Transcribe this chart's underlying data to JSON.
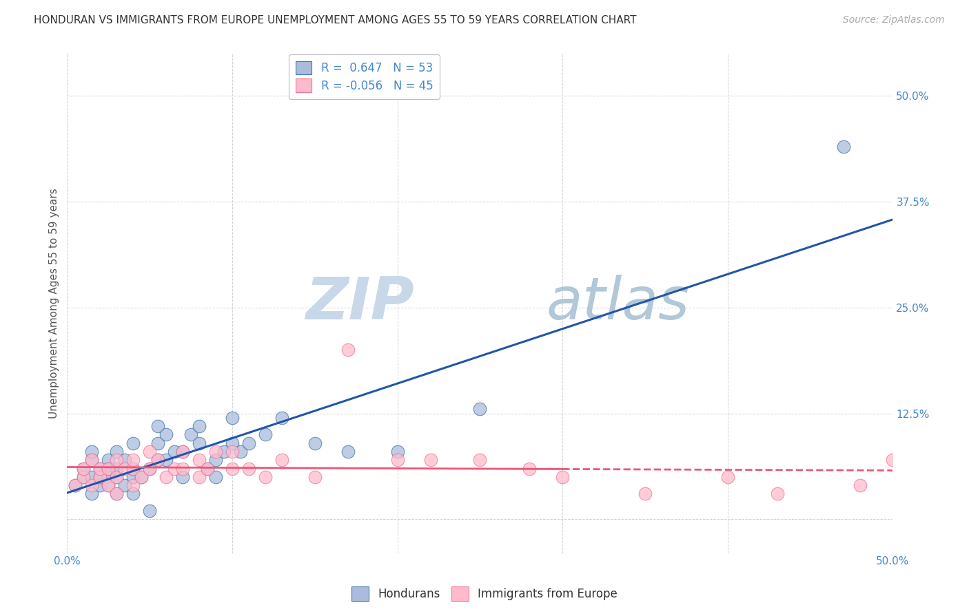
{
  "title": "HONDURAN VS IMMIGRANTS FROM EUROPE UNEMPLOYMENT AMONG AGES 55 TO 59 YEARS CORRELATION CHART",
  "source": "Source: ZipAtlas.com",
  "ylabel": "Unemployment Among Ages 55 to 59 years",
  "xlim": [
    0.0,
    0.5
  ],
  "ylim": [
    -0.04,
    0.55
  ],
  "x_ticks": [
    0.0,
    0.1,
    0.2,
    0.3,
    0.4,
    0.5
  ],
  "x_tick_labels": [
    "0.0%",
    "",
    "",
    "",
    "",
    "50.0%"
  ],
  "y_ticks": [
    0.0,
    0.125,
    0.25,
    0.375,
    0.5
  ],
  "y_tick_labels": [
    "",
    "12.5%",
    "25.0%",
    "37.5%",
    "50.0%"
  ],
  "background_color": "#ffffff",
  "grid_color": "#cccccc",
  "watermark_zip": "ZIP",
  "watermark_atlas": "atlas",
  "blue_color": "#aabbdd",
  "pink_color": "#ffbbcc",
  "blue_edge_color": "#4477aa",
  "pink_edge_color": "#ee7799",
  "blue_line_color": "#2255aa",
  "pink_line_color": "#ee5577",
  "R_blue": 0.647,
  "N_blue": 53,
  "R_pink": -0.056,
  "N_pink": 45,
  "blue_scatter_x": [
    0.005,
    0.01,
    0.01,
    0.015,
    0.015,
    0.015,
    0.015,
    0.02,
    0.02,
    0.02,
    0.025,
    0.025,
    0.025,
    0.025,
    0.03,
    0.03,
    0.03,
    0.03,
    0.035,
    0.035,
    0.04,
    0.04,
    0.04,
    0.04,
    0.045,
    0.05,
    0.05,
    0.055,
    0.055,
    0.055,
    0.06,
    0.06,
    0.065,
    0.07,
    0.07,
    0.075,
    0.08,
    0.08,
    0.085,
    0.09,
    0.09,
    0.095,
    0.1,
    0.1,
    0.105,
    0.11,
    0.12,
    0.13,
    0.15,
    0.17,
    0.2,
    0.25,
    0.47
  ],
  "blue_scatter_y": [
    0.04,
    0.05,
    0.06,
    0.03,
    0.05,
    0.07,
    0.08,
    0.04,
    0.06,
    0.05,
    0.05,
    0.07,
    0.04,
    0.06,
    0.03,
    0.05,
    0.06,
    0.08,
    0.04,
    0.07,
    0.03,
    0.05,
    0.06,
    0.09,
    0.05,
    0.01,
    0.06,
    0.07,
    0.09,
    0.11,
    0.07,
    0.1,
    0.08,
    0.05,
    0.08,
    0.1,
    0.09,
    0.11,
    0.06,
    0.05,
    0.07,
    0.08,
    0.09,
    0.12,
    0.08,
    0.09,
    0.1,
    0.12,
    0.09,
    0.08,
    0.08,
    0.13,
    0.44
  ],
  "pink_scatter_x": [
    0.005,
    0.01,
    0.01,
    0.015,
    0.015,
    0.02,
    0.02,
    0.025,
    0.025,
    0.03,
    0.03,
    0.03,
    0.035,
    0.04,
    0.04,
    0.04,
    0.045,
    0.05,
    0.05,
    0.055,
    0.06,
    0.065,
    0.07,
    0.07,
    0.08,
    0.08,
    0.085,
    0.09,
    0.1,
    0.1,
    0.11,
    0.12,
    0.13,
    0.15,
    0.17,
    0.2,
    0.22,
    0.25,
    0.28,
    0.3,
    0.35,
    0.4,
    0.43,
    0.48,
    0.5
  ],
  "pink_scatter_y": [
    0.04,
    0.05,
    0.06,
    0.04,
    0.07,
    0.05,
    0.06,
    0.04,
    0.06,
    0.03,
    0.05,
    0.07,
    0.06,
    0.04,
    0.06,
    0.07,
    0.05,
    0.06,
    0.08,
    0.07,
    0.05,
    0.06,
    0.06,
    0.08,
    0.05,
    0.07,
    0.06,
    0.08,
    0.06,
    0.08,
    0.06,
    0.05,
    0.07,
    0.05,
    0.2,
    0.07,
    0.07,
    0.07,
    0.06,
    0.05,
    0.03,
    0.05,
    0.03,
    0.04,
    0.07
  ],
  "legend_labels": [
    "Hondurans",
    "Immigrants from Europe"
  ],
  "title_fontsize": 11,
  "tick_fontsize": 11,
  "axis_tick_color": "#4488cc"
}
